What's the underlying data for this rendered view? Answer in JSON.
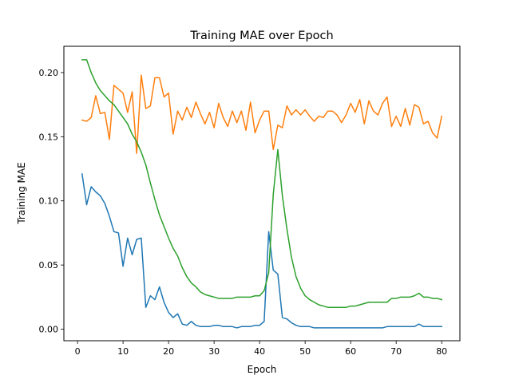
{
  "chart_data": {
    "type": "line",
    "title": "Training MAE over Epoch",
    "xlabel": "Epoch",
    "ylabel": "Training MAE",
    "xlim": [
      -3,
      84
    ],
    "ylim": [
      -0.009,
      0.2205
    ],
    "xticks": [
      0,
      10,
      20,
      30,
      40,
      50,
      60,
      70,
      80
    ],
    "xtick_labels": [
      "0",
      "10",
      "20",
      "30",
      "40",
      "50",
      "60",
      "70",
      "80"
    ],
    "yticks": [
      0.0,
      0.05,
      0.1,
      0.15,
      0.2
    ],
    "ytick_labels": [
      "0.00",
      "0.05",
      "0.10",
      "0.15",
      "0.20"
    ],
    "grid": false,
    "legend": "none",
    "x": [
      1,
      2,
      3,
      4,
      5,
      6,
      7,
      8,
      9,
      10,
      11,
      12,
      13,
      14,
      15,
      16,
      17,
      18,
      19,
      20,
      21,
      22,
      23,
      24,
      25,
      26,
      27,
      28,
      29,
      30,
      31,
      32,
      33,
      34,
      35,
      36,
      37,
      38,
      39,
      40,
      41,
      42,
      43,
      44,
      45,
      46,
      47,
      48,
      49,
      50,
      51,
      52,
      53,
      54,
      55,
      56,
      57,
      58,
      59,
      60,
      61,
      62,
      63,
      64,
      65,
      66,
      67,
      68,
      69,
      70,
      71,
      72,
      73,
      74,
      75,
      76,
      77,
      78,
      79,
      80
    ],
    "series": [
      {
        "color": "#1f77b4",
        "values": [
          0.121,
          0.097,
          0.111,
          0.107,
          0.104,
          0.098,
          0.088,
          0.076,
          0.075,
          0.049,
          0.071,
          0.058,
          0.07,
          0.071,
          0.017,
          0.026,
          0.023,
          0.033,
          0.021,
          0.013,
          0.009,
          0.012,
          0.004,
          0.003,
          0.006,
          0.003,
          0.002,
          0.002,
          0.002,
          0.003,
          0.003,
          0.002,
          0.002,
          0.002,
          0.001,
          0.002,
          0.002,
          0.002,
          0.003,
          0.003,
          0.006,
          0.076,
          0.046,
          0.043,
          0.009,
          0.008,
          0.005,
          0.003,
          0.002,
          0.002,
          0.002,
          0.001,
          0.001,
          0.001,
          0.001,
          0.001,
          0.001,
          0.001,
          0.001,
          0.001,
          0.001,
          0.001,
          0.001,
          0.001,
          0.001,
          0.001,
          0.001,
          0.002,
          0.002,
          0.002,
          0.002,
          0.002,
          0.002,
          0.002,
          0.004,
          0.002,
          0.002,
          0.002,
          0.002,
          0.002
        ]
      },
      {
        "color": "#ff7f0e",
        "values": [
          0.163,
          0.162,
          0.165,
          0.182,
          0.168,
          0.169,
          0.148,
          0.19,
          0.187,
          0.184,
          0.169,
          0.185,
          0.137,
          0.198,
          0.172,
          0.174,
          0.196,
          0.196,
          0.181,
          0.184,
          0.152,
          0.17,
          0.163,
          0.173,
          0.165,
          0.177,
          0.168,
          0.16,
          0.169,
          0.157,
          0.176,
          0.165,
          0.158,
          0.17,
          0.161,
          0.17,
          0.155,
          0.177,
          0.153,
          0.163,
          0.17,
          0.17,
          0.14,
          0.159,
          0.157,
          0.174,
          0.167,
          0.171,
          0.167,
          0.171,
          0.166,
          0.162,
          0.166,
          0.165,
          0.17,
          0.17,
          0.167,
          0.161,
          0.167,
          0.176,
          0.169,
          0.179,
          0.16,
          0.178,
          0.17,
          0.167,
          0.176,
          0.181,
          0.158,
          0.166,
          0.158,
          0.172,
          0.159,
          0.175,
          0.173,
          0.16,
          0.162,
          0.153,
          0.149,
          0.166
        ]
      },
      {
        "color": "#2ca02c",
        "values": [
          0.21,
          0.21,
          0.2,
          0.192,
          0.186,
          0.182,
          0.178,
          0.175,
          0.17,
          0.165,
          0.16,
          0.152,
          0.146,
          0.138,
          0.128,
          0.114,
          0.101,
          0.089,
          0.08,
          0.071,
          0.063,
          0.057,
          0.048,
          0.041,
          0.036,
          0.033,
          0.029,
          0.027,
          0.026,
          0.025,
          0.024,
          0.024,
          0.024,
          0.024,
          0.025,
          0.025,
          0.025,
          0.025,
          0.026,
          0.026,
          0.03,
          0.044,
          0.105,
          0.14,
          0.104,
          0.078,
          0.056,
          0.041,
          0.032,
          0.026,
          0.023,
          0.021,
          0.019,
          0.018,
          0.017,
          0.017,
          0.017,
          0.017,
          0.017,
          0.018,
          0.018,
          0.019,
          0.02,
          0.021,
          0.021,
          0.021,
          0.021,
          0.021,
          0.024,
          0.024,
          0.025,
          0.025,
          0.025,
          0.026,
          0.028,
          0.025,
          0.025,
          0.024,
          0.024,
          0.023
        ]
      }
    ]
  }
}
